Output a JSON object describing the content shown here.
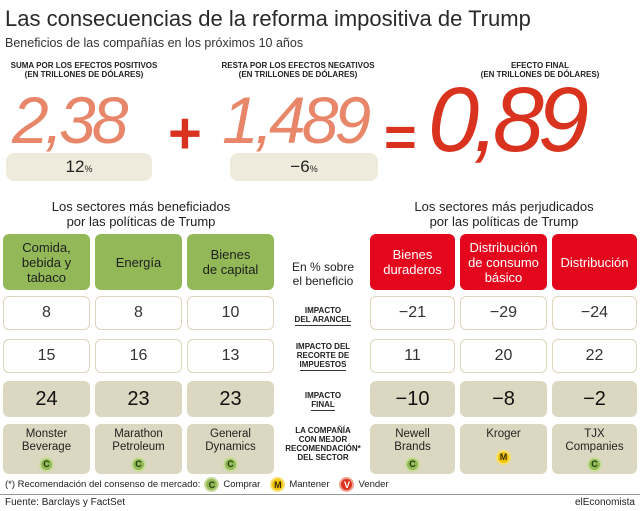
{
  "title": "Las consecuencias de la reforma impositiva de Trump",
  "subtitle": "Beneficios de las compañías en los próximos 10 años",
  "summary": {
    "positive": {
      "label_1": "SUMA POR LOS EFECTOS POSITIVOS",
      "label_2": "(EN TRILLONES DE DÓLARES)",
      "value": "2,38",
      "pct": "12",
      "pct_unit": "%"
    },
    "negative": {
      "label_1": "RESTA POR LOS EFECTOS NEGATIVOS",
      "label_2": "(EN TRILLONES DE DÓLARES)",
      "value": "1,489",
      "pct": "−6",
      "pct_unit": "%"
    },
    "final": {
      "label_1": "EFECTO FINAL",
      "label_2": "(EN TRILLONES DE DÓLARES)",
      "value": "0,89"
    },
    "plus": "+",
    "equals": "="
  },
  "benefited_title_1": "Los sectores más beneficiados",
  "benefited_title_2": "por las políticas de Trump",
  "harmed_title_1": "Los sectores más perjudicados",
  "harmed_title_2": "por las políticas de Trump",
  "center_header_1": "En % sobre",
  "center_header_2": "el beneficio",
  "row_labels": {
    "tariff_1": "IMPACTO",
    "tariff_2": "DEL ARANCEL",
    "tax_1": "IMPACTO DEL",
    "tax_2": "RECORTE DE",
    "tax_3": "IMPUESTOS",
    "final_1": "IMPACTO",
    "final_2": "FINAL",
    "company_1": "LA COMPAÑÍA",
    "company_2": "CON MEJOR",
    "company_3": "RECOMENDACIÓN*",
    "company_4": "DEL SECTOR"
  },
  "sectors": [
    {
      "name_1": "Comida,",
      "name_2": "bebida y",
      "name_3": "tabaco",
      "tariff": "8",
      "tax": "15",
      "final": "24",
      "company_1": "Monster",
      "company_2": "Beverage",
      "rec": "C"
    },
    {
      "name_1": "Energía",
      "name_2": "",
      "name_3": "",
      "tariff": "8",
      "tax": "16",
      "final": "23",
      "company_1": "Marathon",
      "company_2": "Petroleum",
      "rec": "C"
    },
    {
      "name_1": "Bienes",
      "name_2": "de capital",
      "name_3": "",
      "tariff": "10",
      "tax": "13",
      "final": "23",
      "company_1": "General",
      "company_2": "Dynamics",
      "rec": "C"
    },
    {
      "name_1": "Bienes",
      "name_2": "duraderos",
      "name_3": "",
      "tariff": "−21",
      "tax": "11",
      "final": "−10",
      "company_1": "Newell",
      "company_2": "Brands",
      "rec": "C"
    },
    {
      "name_1": "Distribución",
      "name_2": "de consumo",
      "name_3": "básico",
      "tariff": "−29",
      "tax": "20",
      "final": "−8",
      "company_1": "Kroger",
      "company_2": "",
      "rec": "M"
    },
    {
      "name_1": "Distribución",
      "name_2": "",
      "name_3": "",
      "tariff": "−24",
      "tax": "22",
      "final": "−2",
      "company_1": "TJX",
      "company_2": "Companies",
      "rec": "C"
    }
  ],
  "legend": {
    "intro": "(*) Recomendación del consenso de mercado:",
    "buy_letter": "C",
    "buy": "Comprar",
    "hold_letter": "M",
    "hold": "Mantener",
    "sell_letter": "V",
    "sell": "Vender"
  },
  "source": "Fuente: Barclays y FactSet",
  "brand": "elEconomista",
  "colors": {
    "green": "#93b858",
    "red": "#e3061d",
    "beige": "#dcd7c0",
    "light_beige": "#efebdc",
    "orange_light": "#e8866a",
    "orange_dark": "#d9321f"
  }
}
